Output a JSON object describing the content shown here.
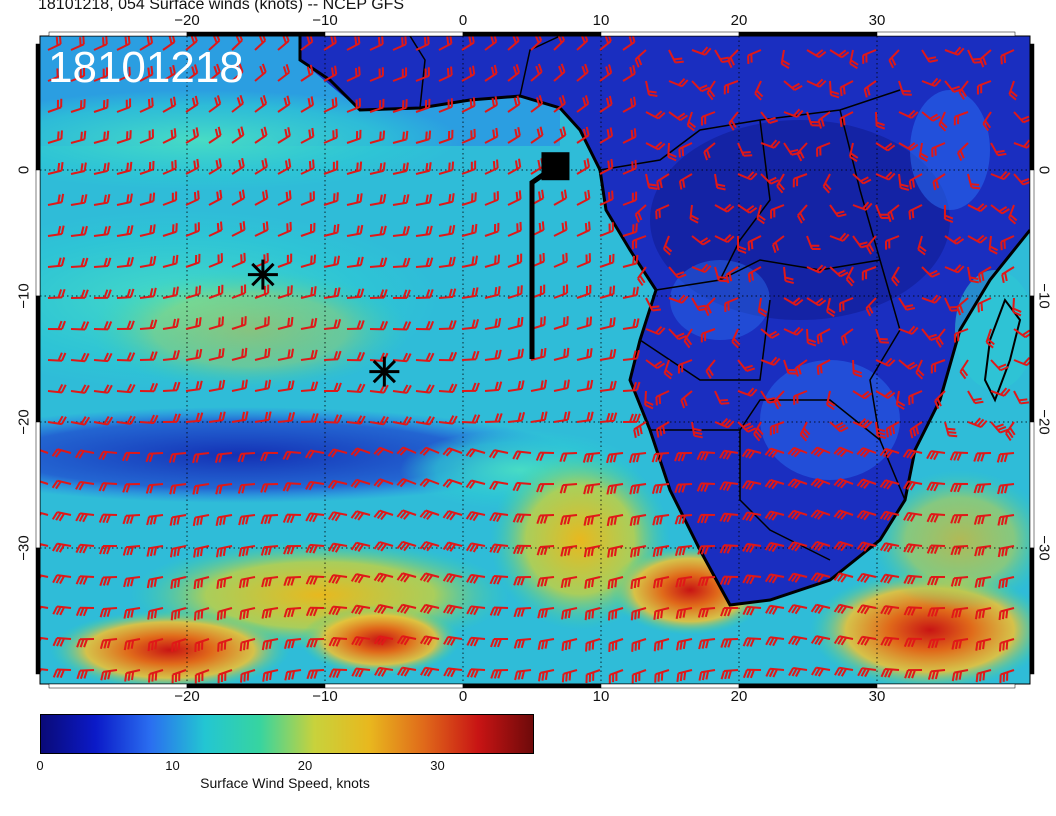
{
  "title": "18101218, 054 Surface winds (knots) -- NCEP GFS",
  "stamp": "18101218",
  "lon_ticks": [
    "−20",
    "−10",
    "0",
    "10",
    "20",
    "30"
  ],
  "lat_ticks": [
    "0",
    "−10",
    "−20",
    "−30"
  ],
  "colorbar": {
    "title": "Surface Wind Speed, knots",
    "ticks": [
      "0",
      "10",
      "20",
      "30"
    ],
    "colors": [
      "#0a0a78",
      "#0b1ac8",
      "#2a6ef0",
      "#23c6d2",
      "#37d4a0",
      "#c8d23c",
      "#e8b81e",
      "#e06a1a",
      "#c81414",
      "#6e0a0a"
    ]
  },
  "map_data": {
    "projection": "equirectangular",
    "lon_range": [
      -30,
      40
    ],
    "lat_range": [
      -38,
      9
    ],
    "gridlines": true,
    "markers": [
      {
        "type": "asterisk",
        "lon": -14.5,
        "lat": -8.3
      },
      {
        "type": "asterisk",
        "lon": -5.7,
        "lat": -16.0
      },
      {
        "type": "square",
        "lon": 6.7,
        "lat": 0.3
      }
    ],
    "track": [
      [
        6.7,
        0.3
      ],
      [
        5.0,
        -1.0
      ],
      [
        5.0,
        -15.0
      ]
    ],
    "barb_color": "#e01818",
    "coast_color": "#000000"
  }
}
